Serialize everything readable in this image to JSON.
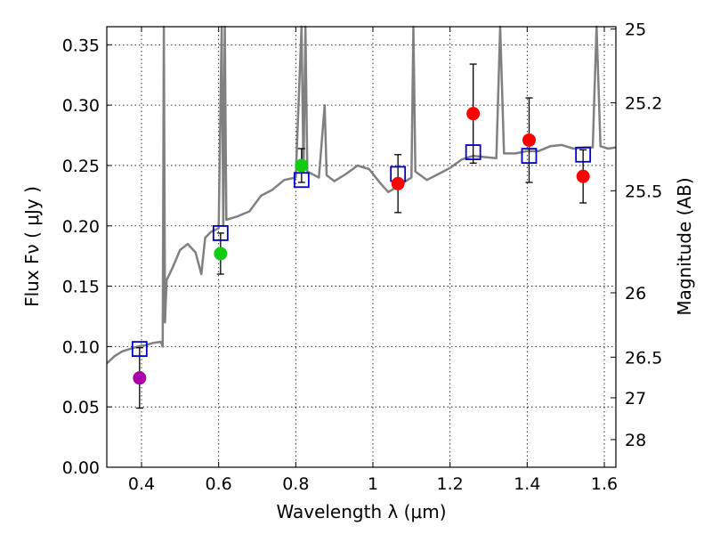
{
  "chart_data": {
    "type": "scatter",
    "x_axis": {
      "label": "Wavelength  λ (μm)",
      "range": [
        0.31,
        1.63
      ],
      "ticks": [
        0.4,
        0.6,
        0.8,
        1.0,
        1.2,
        1.4,
        1.6
      ],
      "tick_labels": [
        "0.4",
        "0.6",
        "0.8",
        "1",
        "1.2",
        "1.4",
        "1.6"
      ]
    },
    "y_axis": {
      "label": "Flux  Fν  ( μJy )",
      "range": [
        0.0,
        0.365
      ],
      "ticks": [
        0.0,
        0.05,
        0.1,
        0.15,
        0.2,
        0.25,
        0.3,
        0.35
      ],
      "tick_labels": [
        "0.00",
        "0.05",
        "0.10",
        "0.15",
        "0.20",
        "0.25",
        "0.30",
        "0.35"
      ]
    },
    "y2_axis": {
      "label": "Magnitude (AB)",
      "ticks": [
        25,
        25.2,
        25.5,
        26,
        26.5,
        27,
        28
      ],
      "tick_labels": [
        "25",
        "25.2",
        "25.5",
        "26",
        "26.5",
        "27",
        "28"
      ]
    },
    "grid": true,
    "colors": {
      "spectrum": "#808080",
      "model_box": "#0000cc",
      "errorbar": "#000000",
      "purple": "#aa00aa",
      "green": "#11cc11",
      "red": "#ff0000"
    },
    "observed": [
      {
        "x": 0.395,
        "y": 0.074,
        "err": 0.025,
        "color": "purple"
      },
      {
        "x": 0.605,
        "y": 0.177,
        "err": 0.017,
        "color": "green"
      },
      {
        "x": 0.815,
        "y": 0.25,
        "err": 0.014,
        "color": "green"
      },
      {
        "x": 1.065,
        "y": 0.235,
        "err": 0.024,
        "color": "red"
      },
      {
        "x": 1.26,
        "y": 0.293,
        "err": 0.041,
        "color": "red"
      },
      {
        "x": 1.405,
        "y": 0.271,
        "err": 0.035,
        "color": "red"
      },
      {
        "x": 1.545,
        "y": 0.241,
        "err": 0.022,
        "color": "red"
      }
    ],
    "model_fluxes": [
      {
        "x": 0.395,
        "y": 0.098
      },
      {
        "x": 0.605,
        "y": 0.194
      },
      {
        "x": 0.815,
        "y": 0.238
      },
      {
        "x": 1.065,
        "y": 0.243
      },
      {
        "x": 1.26,
        "y": 0.261
      },
      {
        "x": 1.405,
        "y": 0.258
      },
      {
        "x": 1.545,
        "y": 0.259
      }
    ],
    "spectrum": [
      [
        0.31,
        0.086
      ],
      [
        0.33,
        0.092
      ],
      [
        0.35,
        0.096
      ],
      [
        0.37,
        0.098
      ],
      [
        0.39,
        0.1
      ],
      [
        0.41,
        0.101
      ],
      [
        0.43,
        0.103
      ],
      [
        0.45,
        0.104
      ],
      [
        0.455,
        0.1
      ],
      [
        0.458,
        0.365
      ],
      [
        0.461,
        0.12
      ],
      [
        0.465,
        0.155
      ],
      [
        0.48,
        0.165
      ],
      [
        0.5,
        0.18
      ],
      [
        0.52,
        0.185
      ],
      [
        0.54,
        0.178
      ],
      [
        0.555,
        0.16
      ],
      [
        0.565,
        0.19
      ],
      [
        0.58,
        0.195
      ],
      [
        0.6,
        0.198
      ],
      [
        0.608,
        0.365
      ],
      [
        0.612,
        0.2
      ],
      [
        0.616,
        0.365
      ],
      [
        0.62,
        0.205
      ],
      [
        0.65,
        0.208
      ],
      [
        0.68,
        0.212
      ],
      [
        0.71,
        0.225
      ],
      [
        0.74,
        0.23
      ],
      [
        0.77,
        0.238
      ],
      [
        0.8,
        0.24
      ],
      [
        0.815,
        0.365
      ],
      [
        0.82,
        0.245
      ],
      [
        0.825,
        0.365
      ],
      [
        0.83,
        0.245
      ],
      [
        0.86,
        0.24
      ],
      [
        0.875,
        0.3
      ],
      [
        0.88,
        0.242
      ],
      [
        0.9,
        0.237
      ],
      [
        0.93,
        0.243
      ],
      [
        0.96,
        0.25
      ],
      [
        0.99,
        0.247
      ],
      [
        1.02,
        0.235
      ],
      [
        1.04,
        0.228
      ],
      [
        1.06,
        0.232
      ],
      [
        1.08,
        0.236
      ],
      [
        1.1,
        0.24
      ],
      [
        1.105,
        0.365
      ],
      [
        1.11,
        0.245
      ],
      [
        1.14,
        0.238
      ],
      [
        1.17,
        0.243
      ],
      [
        1.2,
        0.248
      ],
      [
        1.23,
        0.255
      ],
      [
        1.26,
        0.258
      ],
      [
        1.29,
        0.257
      ],
      [
        1.32,
        0.256
      ],
      [
        1.33,
        0.365
      ],
      [
        1.34,
        0.26
      ],
      [
        1.37,
        0.26
      ],
      [
        1.4,
        0.262
      ],
      [
        1.43,
        0.262
      ],
      [
        1.46,
        0.266
      ],
      [
        1.49,
        0.267
      ],
      [
        1.52,
        0.264
      ],
      [
        1.55,
        0.265
      ],
      [
        1.57,
        0.265
      ],
      [
        1.58,
        0.365
      ],
      [
        1.59,
        0.266
      ],
      [
        1.61,
        0.264
      ],
      [
        1.63,
        0.265
      ]
    ]
  }
}
